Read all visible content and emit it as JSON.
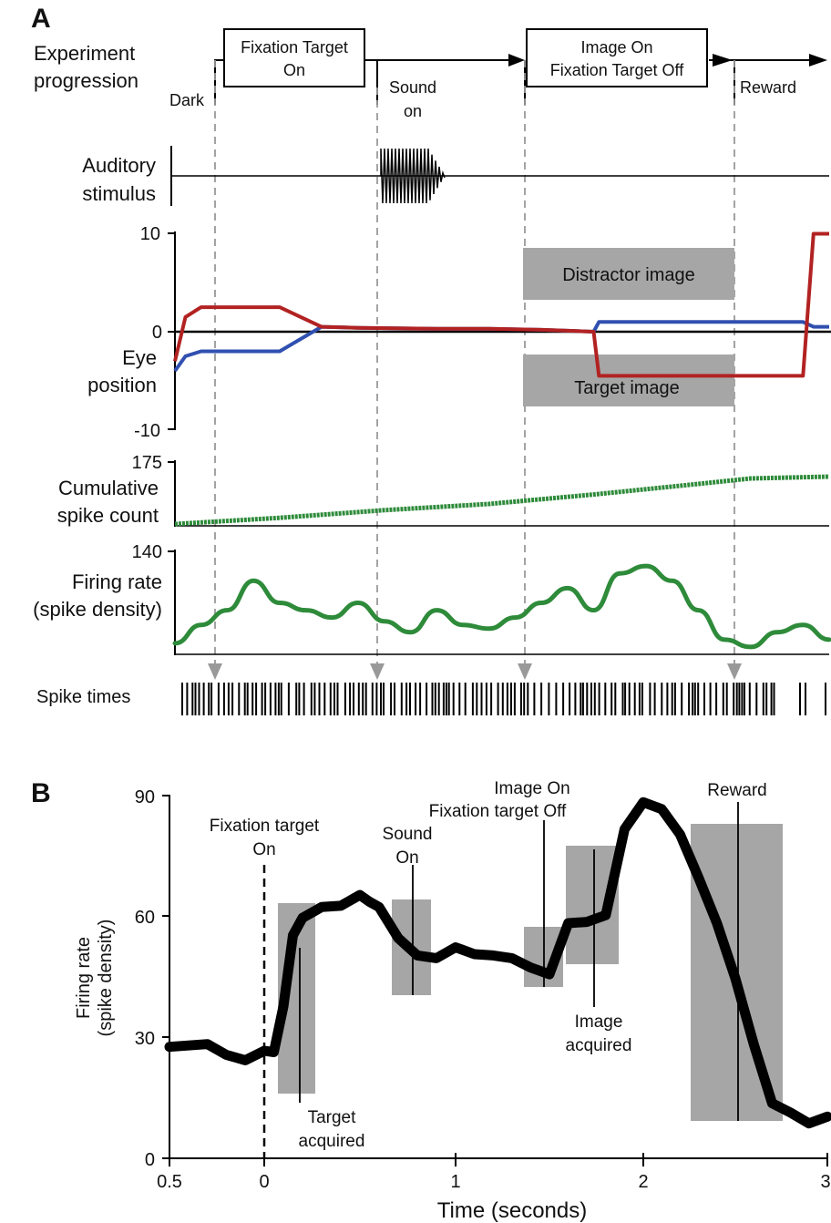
{
  "panel_a": {
    "letter": "A",
    "progression_label": [
      "Experiment",
      "progression"
    ],
    "events": {
      "dark": "Dark",
      "fixation_target": [
        "Fixation Target",
        "On"
      ],
      "sound": [
        "Sound",
        "on"
      ],
      "image": [
        "Image On",
        "Fixation Target Off"
      ],
      "reward": "Reward"
    },
    "auditory_label": [
      "Auditory",
      "stimulus"
    ],
    "eye_label": [
      "Eye",
      "position"
    ],
    "eye_ticks": [
      "10",
      "0",
      "-10"
    ],
    "distractor_label": "Distractor image",
    "target_label": "Target image",
    "cumulative_label": [
      "Cumulative",
      "spike count"
    ],
    "cumulative_tick": "175",
    "firing_label": [
      "Firing rate",
      "(spike density)"
    ],
    "firing_tick": "140",
    "spike_label": "Spike times"
  },
  "panel_b": {
    "letter": "B",
    "ylabel": [
      "Firing rate",
      "(spike density)"
    ],
    "xlabel": "Time (seconds)",
    "annotations": {
      "fixation": [
        "Fixation target",
        "On"
      ],
      "sound": [
        "Sound",
        "On"
      ],
      "image_on": [
        "Image On",
        "Fixation target Off"
      ],
      "reward": "Reward",
      "target_acquired": [
        "Target",
        "acquired"
      ],
      "image_acquired": [
        "Image",
        "acquired"
      ]
    }
  },
  "colors": {
    "green": "#2e8b3a",
    "red": "#b22222",
    "blue": "#3050b0",
    "gray_box": "#a6a6a6",
    "dash": "#999999"
  },
  "chart_data": [
    {
      "type": "line",
      "panel": "A",
      "series": [
        {
          "name": "Eye position (red)",
          "x": [
            0.0,
            0.02,
            0.05,
            0.2,
            0.28,
            0.35,
            0.5,
            0.6,
            0.7,
            0.75,
            0.8,
            0.81,
            0.9,
            1.0,
            1.1,
            1.15,
            1.2,
            1.22,
            1.25
          ],
          "values": [
            -3,
            1.5,
            2.5,
            2.5,
            0.5,
            0.4,
            0.3,
            0.3,
            0.2,
            0.1,
            0.0,
            -4.5,
            -4.5,
            -4.5,
            -4.5,
            -4.5,
            -4.5,
            10,
            10
          ]
        },
        {
          "name": "Eye position (blue)",
          "x": [
            0.0,
            0.02,
            0.05,
            0.2,
            0.28,
            0.35,
            0.5,
            0.6,
            0.7,
            0.75,
            0.8,
            0.81,
            0.9,
            1.0,
            1.1,
            1.15,
            1.2,
            1.22,
            1.25
          ],
          "values": [
            -4,
            -2.5,
            -2,
            -2,
            0.5,
            0.4,
            0.3,
            0.3,
            0.2,
            0.1,
            0.0,
            1,
            1,
            1,
            1,
            1,
            1,
            0.5,
            0.5
          ]
        },
        {
          "name": "Cumulative spike count",
          "x": [
            0,
            0.2,
            0.4,
            0.6,
            0.8,
            1.0,
            1.1,
            1.25
          ],
          "values": [
            5,
            22,
            43,
            60,
            86,
            115,
            130,
            135
          ]
        },
        {
          "name": "Firing rate (spike density)",
          "x": [
            0,
            0.05,
            0.1,
            0.15,
            0.2,
            0.25,
            0.3,
            0.35,
            0.4,
            0.45,
            0.5,
            0.55,
            0.6,
            0.65,
            0.7,
            0.75,
            0.8,
            0.85,
            0.9,
            0.95,
            1.0,
            1.05,
            1.1,
            1.15,
            1.2,
            1.25
          ],
          "values": [
            15,
            40,
            60,
            100,
            70,
            60,
            50,
            70,
            45,
            30,
            60,
            40,
            35,
            50,
            70,
            90,
            60,
            110,
            120,
            100,
            60,
            20,
            10,
            30,
            40,
            20
          ]
        }
      ]
    },
    {
      "type": "line",
      "panel": "B",
      "xlabel": "Time (seconds)",
      "ylabel": "Firing rate (spike density)",
      "xlim": [
        -0.5,
        3
      ],
      "ylim": [
        0,
        90
      ],
      "x_tick_labels": [
        "0.5",
        "0",
        "1",
        "2",
        "3"
      ],
      "y_tick_labels": [
        "0",
        "30",
        "60",
        "90"
      ],
      "series": [
        {
          "name": "Firing rate",
          "x": [
            -0.5,
            -0.3,
            -0.2,
            -0.1,
            0,
            0.05,
            0.1,
            0.15,
            0.2,
            0.3,
            0.4,
            0.5,
            0.55,
            0.6,
            0.7,
            0.8,
            0.9,
            1.0,
            1.1,
            1.2,
            1.3,
            1.4,
            1.5,
            1.6,
            1.7,
            1.8,
            1.9,
            2.0,
            2.1,
            2.2,
            2.3,
            2.4,
            2.5,
            2.6,
            2.7,
            2.8,
            2.9,
            3.0
          ],
          "values": [
            28,
            28,
            26,
            24,
            27,
            26,
            38,
            55,
            60,
            62,
            63,
            65,
            64,
            62,
            55,
            50,
            50,
            52,
            51,
            50,
            50,
            47,
            46,
            58,
            59,
            60,
            82,
            88,
            87,
            80,
            70,
            58,
            45,
            28,
            14,
            11,
            9,
            10
          ]
        }
      ]
    }
  ]
}
